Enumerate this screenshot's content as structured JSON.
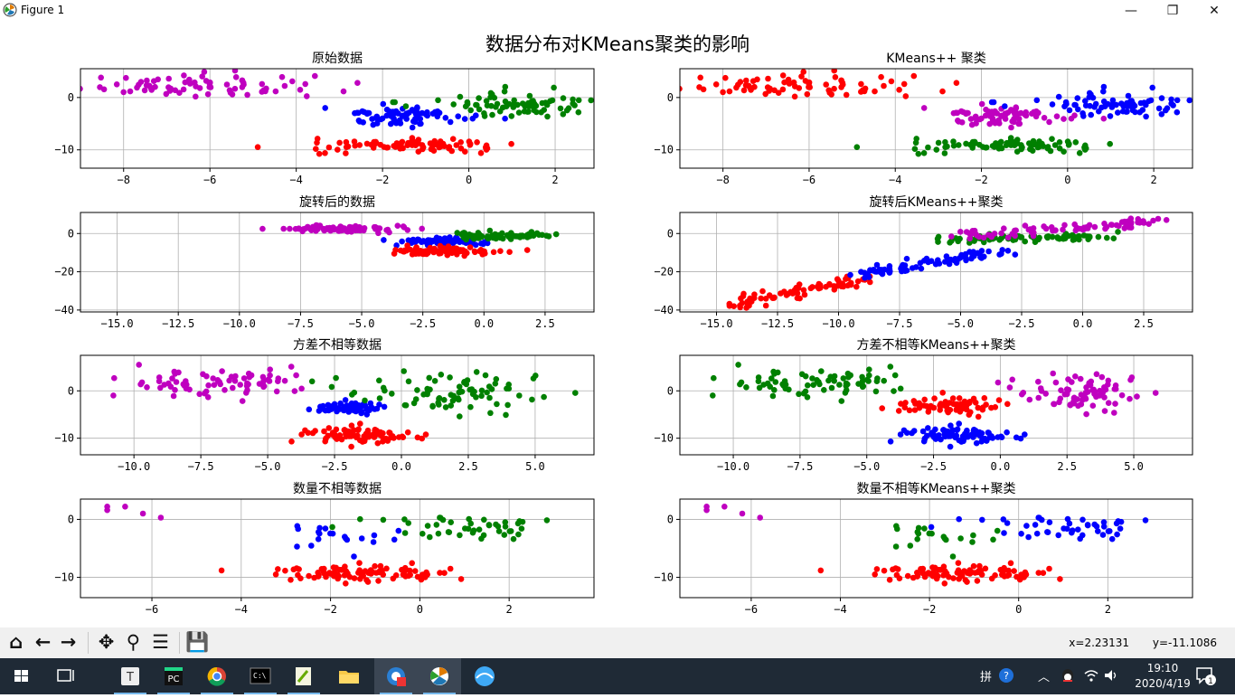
{
  "window": {
    "title": "Figure 1",
    "minimize": "—",
    "maximize": "❐",
    "close": "✕"
  },
  "figure": {
    "suptitle": "数据分布对KMeans聚类的影响"
  },
  "colors": {
    "b": "#0000ff",
    "g": "#008000",
    "r": "#ff0000",
    "m": "#bf00bf",
    "grid": "#b0b0b0"
  },
  "chart_data": [
    {
      "type": "scatter",
      "title": "原始数据",
      "xlim": [
        -9,
        2.9
      ],
      "ylim": [
        -13.5,
        5.5
      ],
      "xticks": [
        -8,
        -6,
        -4,
        -2,
        0,
        2
      ],
      "yticks": [
        0,
        -10
      ],
      "grid": true,
      "series": [
        {
          "color": "m",
          "cx": -6.3,
          "cy": 2.3,
          "sx": 1.2,
          "sy": 1.2,
          "n": 75,
          "seed": 11
        },
        {
          "color": "b",
          "cx": -1.6,
          "cy": -3.6,
          "sx": 0.8,
          "sy": 0.9,
          "n": 75,
          "seed": 12
        },
        {
          "color": "g",
          "cx": 1.0,
          "cy": -1.5,
          "sx": 1.1,
          "sy": 1.0,
          "n": 80,
          "seed": 13
        },
        {
          "color": "r",
          "cx": -1.5,
          "cy": -9.2,
          "sx": 1.2,
          "sy": 0.7,
          "n": 80,
          "seed": 14
        }
      ]
    },
    {
      "type": "scatter",
      "title": "KMeans++ 聚类",
      "xlim": [
        -9,
        2.9
      ],
      "ylim": [
        -13.5,
        5.5
      ],
      "xticks": [
        -8,
        -6,
        -4,
        -2,
        0,
        2
      ],
      "yticks": [
        0,
        -10
      ],
      "grid": true,
      "series": [
        {
          "color": "r",
          "cx": -6.3,
          "cy": 2.3,
          "sx": 1.2,
          "sy": 1.2,
          "n": 75,
          "seed": 11
        },
        {
          "color": "m",
          "cx": -1.6,
          "cy": -3.6,
          "sx": 0.8,
          "sy": 0.9,
          "n": 75,
          "seed": 12
        },
        {
          "color": "b",
          "cx": 1.0,
          "cy": -1.5,
          "sx": 1.1,
          "sy": 1.0,
          "n": 80,
          "seed": 13
        },
        {
          "color": "g",
          "cx": -1.5,
          "cy": -9.2,
          "sx": 1.2,
          "sy": 0.7,
          "n": 80,
          "seed": 14
        }
      ]
    },
    {
      "type": "scatter",
      "title": "旋转后的数据",
      "xlim": [
        -16.5,
        4.5
      ],
      "ylim": [
        -41,
        11
      ],
      "xticks": [
        -15,
        -12.5,
        -10,
        -7.5,
        -5,
        -2.5,
        0,
        2.5
      ],
      "yticks": [
        0,
        -20,
        -40
      ],
      "grid": true,
      "series": [
        {
          "color": "m",
          "cx": -5.8,
          "cy": 2.5,
          "sx": 1.3,
          "sy": 0.8,
          "n": 75,
          "seed": 21
        },
        {
          "color": "b",
          "cx": -1.7,
          "cy": -4.2,
          "sx": 0.9,
          "sy": 1.0,
          "n": 75,
          "seed": 22
        },
        {
          "color": "g",
          "cx": 0.8,
          "cy": -1.0,
          "sx": 1.1,
          "sy": 1.0,
          "n": 80,
          "seed": 23
        },
        {
          "color": "r",
          "cx": -1.5,
          "cy": -9.3,
          "sx": 1.2,
          "sy": 1.1,
          "n": 80,
          "seed": 24
        }
      ]
    },
    {
      "type": "scatter",
      "title": "旋转后KMeans++聚类",
      "xlim": [
        -16.5,
        4.5
      ],
      "ylim": [
        -41,
        11
      ],
      "xticks": [
        -15,
        -12.5,
        -10,
        -7.5,
        -5,
        -2.5,
        0,
        2.5
      ],
      "yticks": [
        0,
        -20,
        -40
      ],
      "grid": true,
      "series": [
        {
          "color": "r",
          "line": [
            [
              -14.5,
              -37
            ],
            [
              -9,
              -24
            ]
          ],
          "spread": 1.2,
          "n": 75,
          "seed": 31
        },
        {
          "color": "b",
          "line": [
            [
              -9,
              -22
            ],
            [
              -3,
              -8
            ]
          ],
          "spread": 1.3,
          "n": 75,
          "seed": 32
        },
        {
          "color": "g",
          "line": [
            [
              -6,
              -3
            ],
            [
              1,
              -2
            ]
          ],
          "spread": 1.2,
          "n": 80,
          "seed": 33
        },
        {
          "color": "m",
          "line": [
            [
              -5,
              -1
            ],
            [
              3,
              6
            ]
          ],
          "spread": 1.2,
          "n": 80,
          "seed": 34
        }
      ]
    },
    {
      "type": "scatter",
      "title": "方差不相等数据",
      "xlim": [
        -12,
        7.2
      ],
      "ylim": [
        -13.5,
        7.5
      ],
      "xticks": [
        -10,
        -7.5,
        -5,
        -2.5,
        0,
        2.5,
        5
      ],
      "yticks": [
        0,
        -10
      ],
      "grid": true,
      "series": [
        {
          "color": "m",
          "cx": -6.5,
          "cy": 2.0,
          "sx": 1.9,
          "sy": 1.7,
          "n": 75,
          "seed": 41
        },
        {
          "color": "b",
          "cx": -2.0,
          "cy": -3.5,
          "sx": 0.6,
          "sy": 0.6,
          "n": 75,
          "seed": 42
        },
        {
          "color": "g",
          "cx": 1.8,
          "cy": -0.5,
          "sx": 2.0,
          "sy": 2.0,
          "n": 80,
          "seed": 43
        },
        {
          "color": "r",
          "cx": -1.6,
          "cy": -9.3,
          "sx": 1.1,
          "sy": 0.8,
          "n": 80,
          "seed": 44
        }
      ]
    },
    {
      "type": "scatter",
      "title": "方差不相等KMeans++聚类",
      "xlim": [
        -12,
        7.2
      ],
      "ylim": [
        -13.5,
        7.5
      ],
      "xticks": [
        -10,
        -7.5,
        -5,
        -2.5,
        0,
        2.5,
        5
      ],
      "yticks": [
        0,
        -10
      ],
      "grid": true,
      "series": [
        {
          "color": "g",
          "cx": -6.5,
          "cy": 2.0,
          "sx": 1.9,
          "sy": 1.7,
          "n": 75,
          "seed": 41
        },
        {
          "color": "r",
          "cx": -2.0,
          "cy": -3.0,
          "sx": 1.0,
          "sy": 1.0,
          "n": 75,
          "seed": 42
        },
        {
          "color": "m",
          "cx": 3.0,
          "cy": -0.5,
          "sx": 1.2,
          "sy": 1.8,
          "n": 80,
          "seed": 43
        },
        {
          "color": "b",
          "cx": -1.6,
          "cy": -9.3,
          "sx": 1.1,
          "sy": 0.8,
          "n": 80,
          "seed": 44
        }
      ]
    },
    {
      "type": "scatter",
      "title": "数量不相等数据",
      "xlim": [
        -7.6,
        3.9
      ],
      "ylim": [
        -13.5,
        3.5
      ],
      "xticks": [
        -6,
        -4,
        -2,
        0,
        2
      ],
      "yticks": [
        0,
        -10
      ],
      "grid": true,
      "series": [
        {
          "color": "m",
          "pts": [
            [
              -7,
              2.2
            ],
            [
              -7,
              1.6
            ],
            [
              -6.6,
              2.2
            ],
            [
              -6.2,
              1.0
            ],
            [
              -5.8,
              0.3
            ]
          ]
        },
        {
          "color": "b",
          "cx": -1.9,
          "cy": -3.2,
          "sx": 0.55,
          "sy": 1.1,
          "n": 20,
          "seed": 52
        },
        {
          "color": "g",
          "cx": 1.2,
          "cy": -1.5,
          "sx": 1.0,
          "sy": 0.9,
          "n": 45,
          "seed": 53
        },
        {
          "color": "r",
          "cx": -1.3,
          "cy": -9.3,
          "sx": 1.1,
          "sy": 0.8,
          "n": 90,
          "seed": 54
        }
      ]
    },
    {
      "type": "scatter",
      "title": "数量不相等KMeans++聚类",
      "xlim": [
        -7.6,
        3.9
      ],
      "ylim": [
        -13.5,
        3.5
      ],
      "xticks": [
        -6,
        -4,
        -2,
        0,
        2
      ],
      "yticks": [
        0,
        -10
      ],
      "grid": true,
      "series": [
        {
          "color": "m",
          "pts": [
            [
              -7,
              2.2
            ],
            [
              -7,
              1.6
            ],
            [
              -6.6,
              2.2
            ],
            [
              -6.2,
              1.0
            ],
            [
              -5.8,
              0.3
            ]
          ]
        },
        {
          "color": "g",
          "cx": -1.9,
          "cy": -3.2,
          "sx": 0.55,
          "sy": 1.1,
          "n": 20,
          "seed": 52
        },
        {
          "color": "b",
          "cx": 1.2,
          "cy": -1.5,
          "sx": 1.0,
          "sy": 0.9,
          "n": 45,
          "seed": 53
        },
        {
          "color": "r",
          "cx": -1.3,
          "cy": -9.3,
          "sx": 1.1,
          "sy": 0.8,
          "n": 90,
          "seed": 54
        }
      ]
    }
  ],
  "toolbar": {
    "buttons": [
      {
        "name": "home-icon",
        "glyph": "⌂"
      },
      {
        "name": "back-icon",
        "glyph": "←"
      },
      {
        "name": "forward-icon",
        "glyph": "→"
      },
      {
        "name": "pan-icon",
        "glyph": "✥"
      },
      {
        "name": "zoom-icon",
        "glyph": "⚲"
      },
      {
        "name": "configure-subplots-icon",
        "glyph": "☰"
      },
      {
        "name": "save-icon",
        "glyph": "💾"
      }
    ],
    "x_readout": "x=2.23131",
    "y_readout": "y=-11.1086"
  },
  "taskbar": {
    "clock_time": "19:10",
    "clock_date": "2020/4/19",
    "notification_count": "1"
  }
}
